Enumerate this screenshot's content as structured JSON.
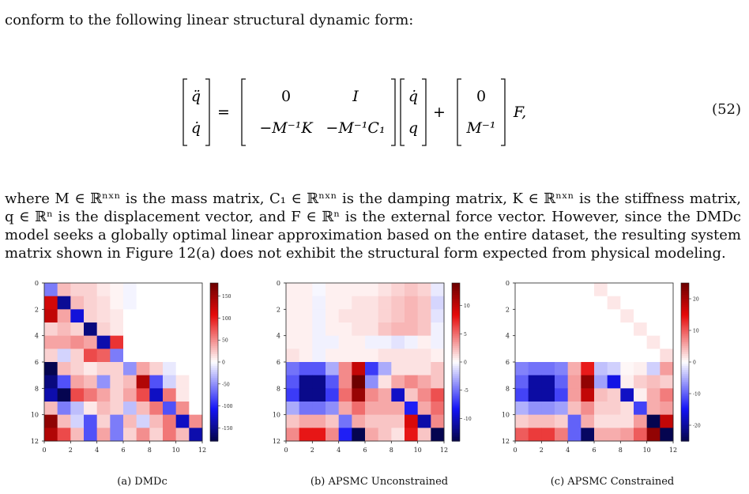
{
  "intro": "conform to the following linear structural dynamic form:",
  "equation": {
    "lhs_top": "q̈",
    "lhs_bottom": "q̇",
    "m11": "0",
    "m12": "I",
    "m21": "−M⁻¹K",
    "m22": "−M⁻¹C₁",
    "v_top": "q̇",
    "v_bottom": "q",
    "b_top": "0",
    "b_bottom": "M⁻¹",
    "tail": "F,",
    "number": "(52)"
  },
  "body_text": "where M ∈ ℝⁿˣⁿ is the mass matrix, C₁ ∈ ℝⁿˣⁿ is the damping matrix, K ∈ ℝⁿˣⁿ is the stiffness matrix, q ∈ ℝⁿ is the displacement vector, and F ∈ ℝⁿ is the external force vector. However, since the DMDc model seeks a globally optimal linear approximation based on the entire dataset, the resulting system matrix shown in Figure 12(a) does not exhibit the structural form expected from physical modeling.",
  "chart_data": [
    {
      "type": "heatmap",
      "caption": "(a) DMDc",
      "x_ticks": [
        "0",
        "2",
        "4",
        "6",
        "8",
        "10",
        "12"
      ],
      "y_ticks": [
        "0",
        "2",
        "4",
        "6",
        "8",
        "10",
        "12"
      ],
      "colorbar_ticks": [
        150,
        100,
        50,
        0,
        -50,
        -100,
        -150
      ],
      "vrange": [
        -180,
        180
      ],
      "matrix": [
        [
          -60,
          30,
          20,
          20,
          10,
          5,
          -5,
          0,
          0,
          0,
          0,
          0
        ],
        [
          120,
          -150,
          30,
          20,
          15,
          5,
          -5,
          0,
          0,
          0,
          0,
          0
        ],
        [
          130,
          40,
          -120,
          20,
          15,
          10,
          0,
          0,
          0,
          0,
          0,
          0
        ],
        [
          20,
          30,
          20,
          -160,
          20,
          10,
          0,
          0,
          0,
          0,
          0,
          0
        ],
        [
          40,
          40,
          50,
          40,
          -140,
          90,
          0,
          0,
          0,
          0,
          0,
          0
        ],
        [
          20,
          -20,
          20,
          80,
          70,
          -60,
          0,
          0,
          0,
          0,
          0,
          0
        ],
        [
          -180,
          30,
          20,
          10,
          20,
          20,
          -50,
          40,
          20,
          -10,
          0,
          0
        ],
        [
          -160,
          -80,
          40,
          30,
          -50,
          20,
          30,
          140,
          -80,
          -20,
          10,
          0
        ],
        [
          -140,
          -180,
          80,
          60,
          40,
          20,
          40,
          80,
          -130,
          60,
          10,
          0
        ],
        [
          30,
          -60,
          -30,
          10,
          30,
          20,
          -30,
          30,
          60,
          -80,
          50,
          0
        ],
        [
          160,
          30,
          -20,
          -80,
          20,
          -60,
          30,
          -20,
          30,
          60,
          -130,
          50
        ],
        [
          140,
          80,
          30,
          -80,
          40,
          -60,
          20,
          50,
          20,
          60,
          30,
          -140
        ]
      ]
    },
    {
      "type": "heatmap",
      "caption": "(b) APSMC Unconstrained",
      "x_ticks": [
        "0",
        "2",
        "4",
        "6",
        "8",
        "10",
        "12"
      ],
      "y_ticks": [
        "0",
        "2",
        "4",
        "6",
        "8",
        "10",
        "12"
      ],
      "colorbar_ticks": [
        10,
        5,
        0,
        -5,
        -10
      ],
      "vrange": [
        -14,
        14
      ],
      "matrix": [
        [
          0.5,
          0.5,
          -0.3,
          0.5,
          0.5,
          0.5,
          0.5,
          1,
          1.5,
          2,
          1.5,
          -0.8
        ],
        [
          0.5,
          0.5,
          -0.5,
          0.5,
          0.5,
          1,
          1,
          1.5,
          2,
          2.5,
          2,
          -1.5
        ],
        [
          0.5,
          0.5,
          -0.5,
          0.5,
          1,
          1,
          1,
          1.5,
          2,
          2.5,
          2,
          -1
        ],
        [
          0.5,
          0.5,
          -0.5,
          0.5,
          0.5,
          1,
          1,
          2,
          2.5,
          2.5,
          2,
          -0.5
        ],
        [
          0.5,
          0.5,
          -0.5,
          -0.5,
          0.5,
          0.5,
          -0.5,
          -0.5,
          -1,
          -0.5,
          0.5,
          -0.5
        ],
        [
          1,
          0.5,
          -0.5,
          0.5,
          0.5,
          0.5,
          0.5,
          1,
          1,
          1,
          1,
          0.5
        ],
        [
          -5,
          -6,
          -6,
          -3,
          4,
          10,
          -7,
          -3,
          1,
          1,
          1,
          2
        ],
        [
          -6,
          -12,
          -12,
          -6,
          4,
          14,
          -4,
          1,
          3,
          4,
          3,
          2
        ],
        [
          -7,
          -12,
          -12,
          -7,
          5,
          12,
          4,
          3,
          -10,
          2,
          4,
          6
        ],
        [
          -3,
          -5,
          -5,
          -4,
          3,
          5,
          3,
          3,
          3,
          -8,
          3,
          5
        ],
        [
          2,
          3,
          3,
          2,
          -5,
          3,
          2,
          2,
          2,
          9,
          -11,
          4
        ],
        [
          4,
          8,
          8,
          4,
          -8,
          -14,
          3,
          2,
          1,
          8,
          2,
          -14
        ]
      ]
    },
    {
      "type": "heatmap",
      "caption": "(c) APSMC Constrained",
      "x_ticks": [
        "0",
        "2",
        "4",
        "6",
        "8",
        "10",
        "12"
      ],
      "y_ticks": [
        "0",
        "2",
        "4",
        "6",
        "8",
        "10",
        "12"
      ],
      "colorbar_ticks": [
        20,
        10,
        0,
        -10,
        -20
      ],
      "vrange": [
        -25,
        25
      ],
      "matrix": [
        [
          0,
          0,
          0,
          0,
          0,
          0,
          1.5,
          0,
          0,
          0,
          0,
          0
        ],
        [
          0,
          0,
          0,
          0,
          0,
          0,
          0,
          1.5,
          0,
          0,
          0,
          0
        ],
        [
          0,
          0,
          0,
          0,
          0,
          0,
          0,
          0,
          1.5,
          0,
          0,
          0
        ],
        [
          0,
          0,
          0,
          0,
          0,
          0,
          0,
          0,
          0,
          1.5,
          0,
          0
        ],
        [
          0,
          0,
          0,
          0,
          0,
          0,
          0,
          0,
          0,
          0,
          1.5,
          0
        ],
        [
          0,
          0,
          0,
          0,
          0,
          0,
          0,
          0,
          0,
          0,
          0,
          2
        ],
        [
          -8,
          -9,
          -9,
          -8,
          5,
          14,
          -4,
          -3,
          0.5,
          1,
          -3,
          6
        ],
        [
          -10,
          -20,
          -20,
          -10,
          6,
          22,
          -6,
          -16,
          1,
          3,
          4,
          3
        ],
        [
          -12,
          -20,
          -20,
          -12,
          6,
          18,
          4,
          3,
          -18,
          1,
          5,
          8
        ],
        [
          -5,
          -7,
          -7,
          -6,
          4,
          7,
          3,
          3,
          2,
          -12,
          5,
          6
        ],
        [
          3,
          4,
          4,
          3,
          -10,
          5,
          2,
          2,
          2,
          6,
          -26,
          18
        ],
        [
          10,
          12,
          12,
          8,
          -10,
          -24,
          5,
          5,
          6,
          10,
          22,
          -26
        ]
      ]
    }
  ]
}
